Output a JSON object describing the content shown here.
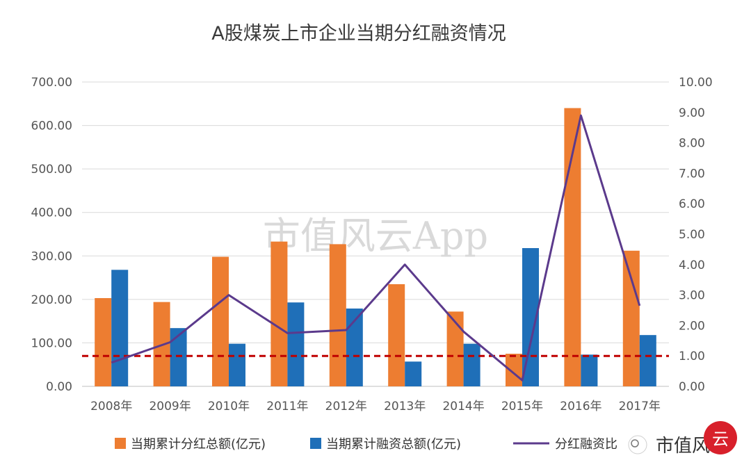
{
  "chart_data": {
    "type": "bar",
    "title": "A股煤炭上市企业当期分红融资情况",
    "categories": [
      "2008年",
      "2009年",
      "2010年",
      "2011年",
      "2012年",
      "2013年",
      "2014年",
      "2015年",
      "2016年",
      "2017年"
    ],
    "series": [
      {
        "name": "当期累计分红总额(亿元)",
        "type": "bar",
        "axis": "left",
        "color": "#ED7D31",
        "values": [
          203,
          194,
          298,
          333,
          327,
          235,
          172,
          75,
          640,
          312
        ]
      },
      {
        "name": "当期累计融资总额(亿元)",
        "type": "bar",
        "axis": "left",
        "color": "#1F6FB8",
        "values": [
          268,
          134,
          98,
          193,
          179,
          57,
          98,
          318,
          73,
          118
        ]
      },
      {
        "name": "分红融资比",
        "type": "line",
        "axis": "right",
        "color": "#5B3A8C",
        "values": [
          0.78,
          1.45,
          3.0,
          1.75,
          1.85,
          4.0,
          1.8,
          0.2,
          8.9,
          2.65
        ]
      }
    ],
    "ylim_left": [
      0,
      700
    ],
    "ylim_right": [
      0,
      10
    ],
    "yticks_left": [
      "0.00",
      "100.00",
      "200.00",
      "300.00",
      "400.00",
      "500.00",
      "600.00",
      "700.00"
    ],
    "yticks_right": [
      "0.00",
      "1.00",
      "2.00",
      "3.00",
      "4.00",
      "5.00",
      "6.00",
      "7.00",
      "8.00",
      "9.00",
      "10.00"
    ],
    "reference_line": {
      "axis": "right",
      "value": 1.0,
      "color": "#C00000",
      "style": "dashed"
    },
    "grid": true,
    "legend_position": "bottom"
  },
  "legend": {
    "dividend_label": "当期累计分红总额(亿元)",
    "financing_label": "当期累计融资总额(亿元)",
    "ratio_label": "分红融资比"
  },
  "watermark": "市值风云App",
  "logo": {
    "text": "市值风云",
    "stamp_char": "云"
  }
}
